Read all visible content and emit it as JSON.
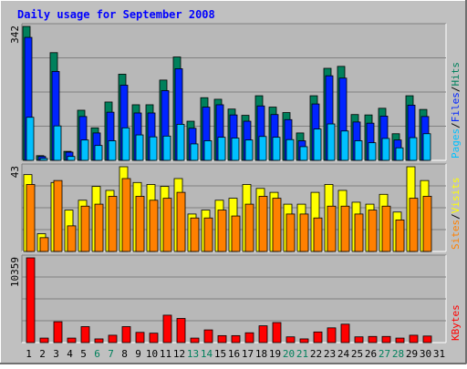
{
  "chart_data": {
    "title": "Daily usage for September 2008",
    "days": [
      "1",
      "2",
      "3",
      "4",
      "5",
      "6",
      "7",
      "8",
      "9",
      "10",
      "11",
      "12",
      "13",
      "14",
      "15",
      "16",
      "17",
      "18",
      "19",
      "20",
      "21",
      "22",
      "23",
      "24",
      "25",
      "26",
      "27",
      "28",
      "29",
      "30",
      "31"
    ],
    "weekend_days": [
      "6",
      "7",
      "13",
      "14",
      "20",
      "21",
      "27",
      "28"
    ],
    "panels": [
      {
        "type": "bar",
        "ymax_label": "342",
        "ylim": [
          0,
          342
        ],
        "side_labels": [
          "Pages",
          "Files",
          "Hits"
        ],
        "series": [
          {
            "name": "Hits",
            "color": "#00805c",
            "values": [
              342,
              12,
              275,
              23,
              128,
              83,
              149,
              220,
              142,
              142,
              205,
              264,
              100,
              160,
              156,
              131,
              115,
              165,
              136,
              122,
              70,
              165,
              235,
              240,
              117,
              116,
              133,
              68,
              165,
              130,
              0
            ]
          },
          {
            "name": "Files",
            "color": "#0024ff",
            "values": [
              314,
              10,
              227,
              21,
              112,
              70,
              123,
              192,
              121,
              121,
              178,
              234,
              82,
              136,
              142,
              116,
              100,
              139,
              117,
              104,
              50,
              144,
              216,
              210,
              98,
              95,
              113,
              52,
              141,
              112,
              0
            ]
          },
          {
            "name": "Pages",
            "color": "#00c0ff",
            "values": [
              110,
              5,
              88,
              10,
              52,
              38,
              50,
              83,
              65,
              60,
              62,
              92,
              42,
              50,
              59,
              57,
              52,
              61,
              59,
              53,
              35,
              80,
              93,
              75,
              50,
              45,
              56,
              32,
              58,
              68,
              0
            ]
          }
        ]
      },
      {
        "type": "bar",
        "ymax_label": "43",
        "ylim": [
          0,
          43
        ],
        "side_labels": [
          "Sites",
          "Visits"
        ],
        "series": [
          {
            "name": "Visits",
            "color": "#ffff00",
            "values": [
              39,
              9,
              35,
              21,
              26,
              33,
              31,
              43,
              35,
              34,
              33,
              37,
              19,
              21,
              26,
              27,
              34,
              32,
              30,
              24,
              24,
              30,
              34,
              31,
              25,
              24,
              29,
              20,
              43,
              36,
              0
            ]
          },
          {
            "name": "Sites",
            "color": "#ff8000",
            "values": [
              34,
              7,
              36,
              13,
              23,
              24,
              28,
              37,
              28,
              26,
              27,
              30,
              17,
              17,
              21,
              18,
              24,
              28,
              27,
              19,
              19,
              17,
              23,
              23,
              19,
              21,
              23,
              16,
              27,
              28,
              0
            ]
          }
        ]
      },
      {
        "type": "bar",
        "ymax_label": "10359",
        "ylim": [
          0,
          10359
        ],
        "side_labels": [
          "KBytes"
        ],
        "series": [
          {
            "name": "KBytes",
            "color": "#ff0000",
            "values": [
              10359,
              550,
              2550,
              550,
              1950,
              450,
              900,
              1950,
              1250,
              1150,
              3350,
              2950,
              550,
              1550,
              850,
              850,
              1200,
              2050,
              2450,
              700,
              450,
              1300,
              1800,
              2250,
              700,
              750,
              750,
              550,
              900,
              800,
              0
            ]
          }
        ]
      }
    ]
  },
  "colors": {
    "frame_bg": "#c0c0c0",
    "plot_bg": "#b8b8b8",
    "grid": "#808080",
    "title": "#0000ff",
    "day_normal": "#000000",
    "day_weekend": "#00805c"
  }
}
